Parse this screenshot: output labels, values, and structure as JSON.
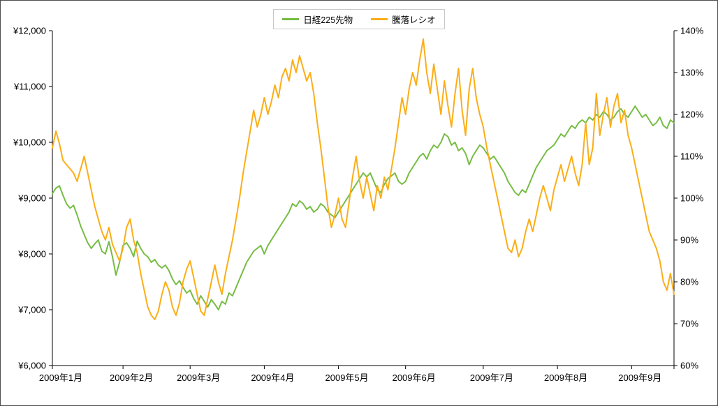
{
  "chart_data": {
    "type": "line",
    "title": "",
    "legend_position": "top",
    "grid": false,
    "n_points": 177,
    "x_categories": [
      {
        "label": "2009年1月",
        "start_index": 0
      },
      {
        "label": "2009年2月",
        "start_index": 20
      },
      {
        "label": "2009年3月",
        "start_index": 39
      },
      {
        "label": "2009年4月",
        "start_index": 60
      },
      {
        "label": "2009年5月",
        "start_index": 81
      },
      {
        "label": "2009年6月",
        "start_index": 100
      },
      {
        "label": "2009年7月",
        "start_index": 122
      },
      {
        "label": "2009年8月",
        "start_index": 143
      },
      {
        "label": "2009年9月",
        "start_index": 164
      }
    ],
    "left_axis": {
      "min": 6000,
      "max": 12000,
      "step": 1000,
      "tick_labels": [
        "¥12,000",
        "¥11,000",
        "¥10,000",
        "¥9,000",
        "¥8,000",
        "¥7,000",
        "¥6,000"
      ]
    },
    "right_axis": {
      "min": 60,
      "max": 140,
      "step": 10,
      "tick_labels": [
        "140%",
        "130%",
        "120%",
        "110%",
        "100%",
        "90%",
        "80%",
        "70%",
        "60%"
      ]
    },
    "series": [
      {
        "name": "日経225先物",
        "axis": "left",
        "color": "#76bc43",
        "values": [
          9080,
          9180,
          9220,
          9050,
          8900,
          8820,
          8870,
          8700,
          8500,
          8350,
          8200,
          8100,
          8180,
          8250,
          8050,
          8000,
          8220,
          7950,
          7620,
          7850,
          8150,
          8200,
          8100,
          7950,
          8230,
          8100,
          8000,
          7950,
          7850,
          7900,
          7800,
          7750,
          7800,
          7700,
          7550,
          7450,
          7520,
          7400,
          7300,
          7350,
          7200,
          7100,
          7250,
          7150,
          7050,
          7180,
          7100,
          7000,
          7150,
          7100,
          7300,
          7250,
          7400,
          7550,
          7700,
          7850,
          7950,
          8050,
          8100,
          8150,
          8000,
          8150,
          8250,
          8350,
          8450,
          8550,
          8650,
          8750,
          8900,
          8850,
          8950,
          8900,
          8800,
          8850,
          8750,
          8800,
          8900,
          8850,
          8750,
          8700,
          8650,
          8750,
          8850,
          8950,
          9050,
          9150,
          9250,
          9350,
          9450,
          9380,
          9450,
          9300,
          9150,
          9100,
          9250,
          9350,
          9400,
          9450,
          9300,
          9250,
          9300,
          9450,
          9550,
          9650,
          9750,
          9800,
          9700,
          9850,
          9950,
          9900,
          10000,
          10150,
          10100,
          9950,
          10000,
          9850,
          9900,
          9800,
          9600,
          9750,
          9850,
          9950,
          9900,
          9800,
          9700,
          9750,
          9650,
          9550,
          9450,
          9300,
          9200,
          9100,
          9050,
          9150,
          9100,
          9250,
          9400,
          9550,
          9650,
          9750,
          9850,
          9900,
          9950,
          10050,
          10150,
          10100,
          10200,
          10300,
          10250,
          10350,
          10400,
          10350,
          10450,
          10400,
          10500,
          10450,
          10550,
          10500,
          10400,
          10450,
          10550,
          10600,
          10500,
          10450,
          10550,
          10650,
          10550,
          10450,
          10500,
          10400,
          10300,
          10350,
          10450,
          10300,
          10250,
          10400,
          10350
        ]
      },
      {
        "name": "騰落レシオ",
        "axis": "right",
        "color": "#fbae17",
        "values": [
          112,
          116,
          113,
          109,
          108,
          107,
          106,
          104,
          107,
          110,
          106,
          102,
          98,
          95,
          92,
          90,
          93,
          89,
          87,
          85,
          88,
          93,
          95,
          90,
          87,
          82,
          78,
          74,
          72,
          71,
          73,
          77,
          80,
          78,
          74,
          72,
          75,
          80,
          83,
          85,
          81,
          77,
          73,
          72,
          76,
          80,
          84,
          80,
          77,
          82,
          86,
          90,
          95,
          100,
          106,
          111,
          116,
          121,
          117,
          120,
          124,
          120,
          123,
          127,
          124,
          129,
          131,
          128,
          133,
          130,
          134,
          131,
          128,
          130,
          125,
          118,
          112,
          105,
          98,
          93,
          96,
          100,
          95,
          93,
          99,
          105,
          110,
          104,
          100,
          105,
          101,
          97,
          103,
          100,
          105,
          102,
          107,
          112,
          118,
          124,
          120,
          126,
          130,
          127,
          133,
          138,
          130,
          125,
          132,
          126,
          120,
          128,
          122,
          117,
          125,
          131,
          121,
          115,
          126,
          131,
          124,
          120,
          117,
          112,
          108,
          104,
          100,
          96,
          92,
          88,
          87,
          90,
          86,
          88,
          92,
          95,
          92,
          96,
          100,
          103,
          100,
          97,
          102,
          105,
          108,
          104,
          107,
          110,
          106,
          103,
          108,
          118,
          108,
          112,
          125,
          115,
          120,
          124,
          117,
          122,
          125,
          118,
          121,
          115,
          112,
          108,
          104,
          100,
          96,
          92,
          90,
          88,
          85,
          80,
          78,
          82,
          77
        ]
      }
    ]
  }
}
